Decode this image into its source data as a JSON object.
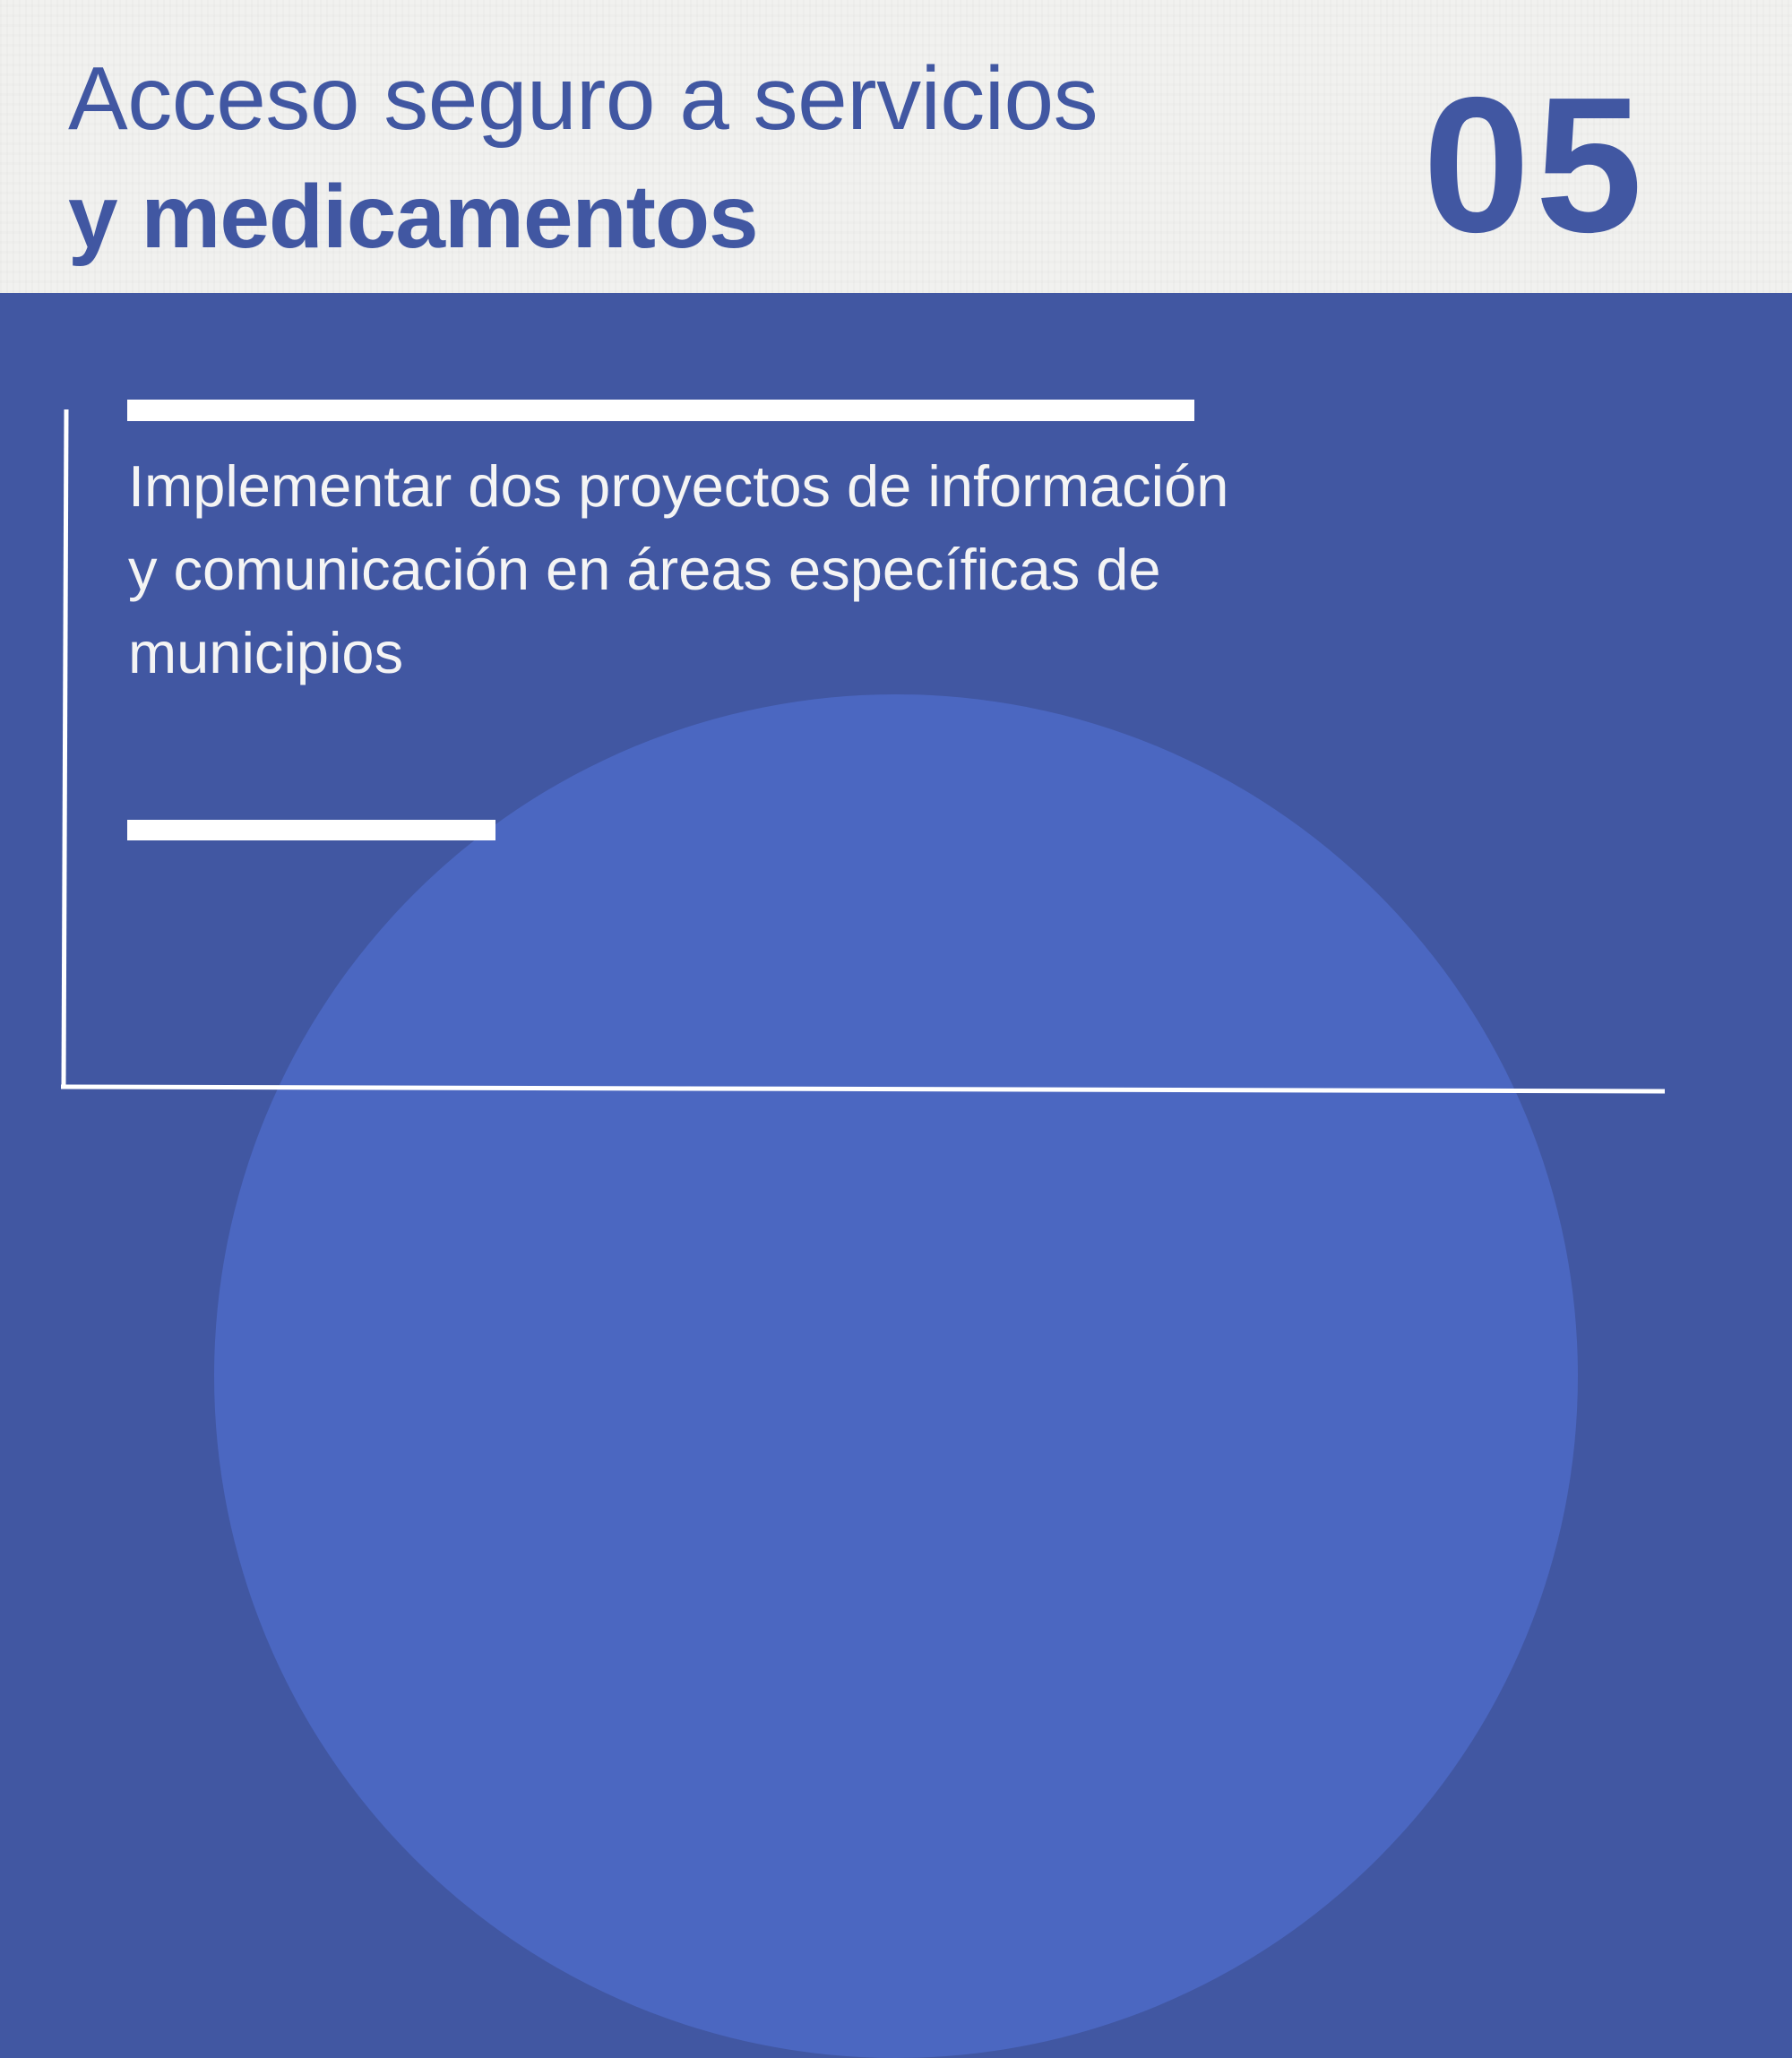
{
  "header": {
    "title_line1": "Acceso seguro a servicios",
    "title_line2": "y medicamentos",
    "number": "05"
  },
  "main": {
    "text": "Implementar dos proyectos de información y comunicación en áreas específicas de municipios"
  },
  "colors": {
    "primary_blue": "#4157A2",
    "circle_blue": "#4B67C1",
    "paper": "#F1F1EF",
    "white": "#FFFFFF"
  }
}
